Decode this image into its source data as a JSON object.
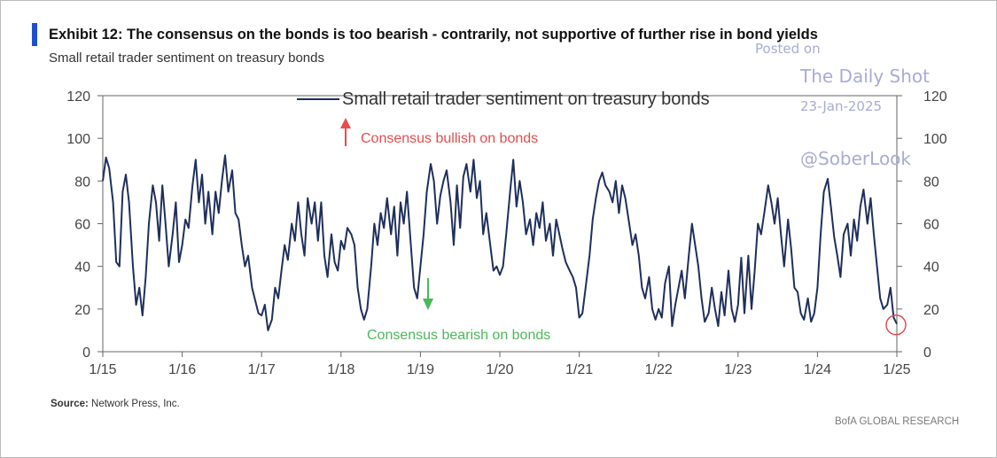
{
  "header": {
    "title": "Exhibit 12:  The consensus on the bonds is too bearish - contrarily, not supportive of further rise in bond yields",
    "subtitle": "Small retail trader sentiment on treasury bonds"
  },
  "source": {
    "label": "Source:",
    "text": "Network Press, Inc."
  },
  "footer": {
    "brand": "BofA GLOBAL RESEARCH"
  },
  "watermark": {
    "posted": "Posted on",
    "site": "The Daily Shot",
    "date": "23-Jan-2025",
    "handle": "@SoberLook"
  },
  "colors": {
    "line": "#1f2f5c",
    "accent": "#1f4fd1",
    "bullish": "#e84c4c",
    "bearish": "#4cb85a",
    "circle": "#e84c4c"
  },
  "chart_data": {
    "type": "line",
    "title": "Small retail trader sentiment on treasury bonds",
    "legend": [
      "Small retail trader sentiment on treasury bonds"
    ],
    "legend_position": "top",
    "annotations": {
      "bullish": "Consensus bullish on bonds",
      "bearish": "Consensus bearish on bonds"
    },
    "x_tick_labels": [
      "1/15",
      "1/16",
      "1/17",
      "1/18",
      "1/19",
      "1/20",
      "1/21",
      "1/22",
      "1/23",
      "1/24",
      "1/25"
    ],
    "x_range": [
      2015.0,
      2025.0
    ],
    "ylim": [
      0,
      120
    ],
    "y_ticks": [
      0,
      20,
      40,
      60,
      80,
      100,
      120
    ],
    "grid": false,
    "highlight_point": {
      "x": 2025.0,
      "y": 13
    },
    "series": [
      {
        "name": "Small retail trader sentiment on treasury bonds",
        "x": [
          2015.0,
          2015.04,
          2015.08,
          2015.13,
          2015.17,
          2015.21,
          2015.25,
          2015.29,
          2015.33,
          2015.38,
          2015.42,
          2015.46,
          2015.5,
          2015.54,
          2015.58,
          2015.63,
          2015.67,
          2015.71,
          2015.75,
          2015.79,
          2015.83,
          2015.88,
          2015.92,
          2015.96,
          2016.0,
          2016.04,
          2016.08,
          2016.13,
          2016.17,
          2016.21,
          2016.25,
          2016.29,
          2016.33,
          2016.38,
          2016.42,
          2016.46,
          2016.5,
          2016.54,
          2016.58,
          2016.63,
          2016.67,
          2016.71,
          2016.75,
          2016.79,
          2016.83,
          2016.88,
          2016.92,
          2016.96,
          2017.0,
          2017.04,
          2017.08,
          2017.13,
          2017.17,
          2017.21,
          2017.25,
          2017.29,
          2017.33,
          2017.38,
          2017.42,
          2017.46,
          2017.5,
          2017.54,
          2017.58,
          2017.63,
          2017.67,
          2017.71,
          2017.75,
          2017.79,
          2017.83,
          2017.88,
          2017.92,
          2017.96,
          2018.0,
          2018.04,
          2018.08,
          2018.13,
          2018.17,
          2018.21,
          2018.25,
          2018.29,
          2018.33,
          2018.38,
          2018.42,
          2018.46,
          2018.5,
          2018.54,
          2018.58,
          2018.63,
          2018.67,
          2018.71,
          2018.75,
          2018.79,
          2018.83,
          2018.88,
          2018.92,
          2018.96,
          2019.0,
          2019.04,
          2019.08,
          2019.13,
          2019.17,
          2019.21,
          2019.25,
          2019.29,
          2019.33,
          2019.38,
          2019.42,
          2019.46,
          2019.5,
          2019.54,
          2019.58,
          2019.63,
          2019.67,
          2019.71,
          2019.75,
          2019.79,
          2019.83,
          2019.88,
          2019.92,
          2019.96,
          2020.0,
          2020.04,
          2020.08,
          2020.13,
          2020.17,
          2020.21,
          2020.25,
          2020.29,
          2020.33,
          2020.38,
          2020.42,
          2020.46,
          2020.5,
          2020.54,
          2020.58,
          2020.63,
          2020.67,
          2020.71,
          2020.75,
          2020.79,
          2020.83,
          2020.88,
          2020.92,
          2020.96,
          2021.0,
          2021.04,
          2021.08,
          2021.13,
          2021.17,
          2021.21,
          2021.25,
          2021.29,
          2021.33,
          2021.38,
          2021.42,
          2021.46,
          2021.5,
          2021.54,
          2021.58,
          2021.63,
          2021.67,
          2021.71,
          2021.75,
          2021.79,
          2021.83,
          2021.88,
          2021.92,
          2021.96,
          2022.0,
          2022.04,
          2022.08,
          2022.13,
          2022.17,
          2022.21,
          2022.25,
          2022.29,
          2022.33,
          2022.38,
          2022.42,
          2022.46,
          2022.5,
          2022.54,
          2022.58,
          2022.63,
          2022.67,
          2022.71,
          2022.75,
          2022.79,
          2022.83,
          2022.88,
          2022.92,
          2022.96,
          2023.0,
          2023.04,
          2023.08,
          2023.13,
          2023.17,
          2023.21,
          2023.25,
          2023.29,
          2023.33,
          2023.38,
          2023.42,
          2023.46,
          2023.5,
          2023.54,
          2023.58,
          2023.63,
          2023.67,
          2023.71,
          2023.75,
          2023.79,
          2023.83,
          2023.88,
          2023.92,
          2023.96,
          2024.0,
          2024.04,
          2024.08,
          2024.13,
          2024.17,
          2024.21,
          2024.25,
          2024.29,
          2024.33,
          2024.38,
          2024.42,
          2024.46,
          2024.5,
          2024.54,
          2024.58,
          2024.63,
          2024.67,
          2024.71,
          2024.75,
          2024.79,
          2024.83,
          2024.88,
          2024.92,
          2024.96,
          2025.0
        ],
        "values": [
          80,
          91,
          86,
          70,
          42,
          40,
          75,
          83,
          70,
          40,
          22,
          30,
          17,
          35,
          60,
          78,
          70,
          52,
          78,
          60,
          40,
          55,
          70,
          42,
          50,
          62,
          58,
          78,
          90,
          70,
          83,
          60,
          75,
          55,
          75,
          65,
          80,
          92,
          75,
          85,
          65,
          62,
          50,
          40,
          45,
          30,
          24,
          18,
          17,
          22,
          10,
          15,
          30,
          25,
          38,
          50,
          43,
          60,
          52,
          70,
          55,
          45,
          72,
          60,
          70,
          52,
          70,
          45,
          35,
          55,
          42,
          38,
          52,
          48,
          58,
          55,
          50,
          30,
          20,
          15,
          20,
          40,
          60,
          50,
          65,
          58,
          72,
          55,
          68,
          45,
          70,
          60,
          75,
          50,
          30,
          25,
          40,
          55,
          75,
          88,
          80,
          60,
          73,
          80,
          85,
          70,
          50,
          78,
          58,
          82,
          88,
          75,
          90,
          72,
          80,
          55,
          65,
          50,
          38,
          40,
          36,
          40,
          55,
          75,
          90,
          68,
          80,
          70,
          55,
          62,
          50,
          65,
          58,
          70,
          52,
          60,
          45,
          62,
          55,
          48,
          42,
          38,
          35,
          30,
          16,
          18,
          30,
          45,
          62,
          72,
          80,
          84,
          78,
          75,
          70,
          80,
          65,
          78,
          72,
          60,
          50,
          55,
          45,
          30,
          25,
          35,
          20,
          15,
          20,
          16,
          32,
          40,
          12,
          22,
          30,
          38,
          25,
          45,
          60,
          50,
          40,
          25,
          14,
          18,
          30,
          20,
          12,
          28,
          17,
          38,
          20,
          14,
          22,
          44,
          18,
          45,
          20,
          38,
          60,
          55,
          65,
          78,
          70,
          60,
          72,
          55,
          40,
          62,
          48,
          30,
          28,
          18,
          15,
          25,
          14,
          18,
          30,
          55,
          75,
          81,
          68,
          54,
          45,
          35,
          55,
          60,
          45,
          62,
          52,
          68,
          76,
          60,
          72,
          55,
          40,
          25,
          20,
          22,
          30,
          16,
          13
        ]
      }
    ]
  }
}
